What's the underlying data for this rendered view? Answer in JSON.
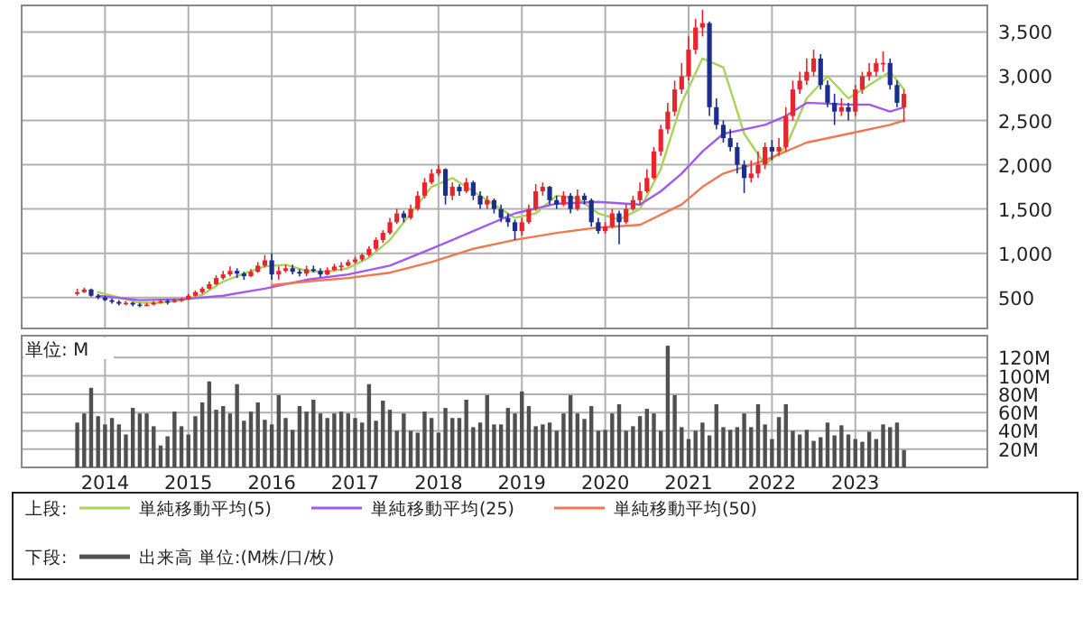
{
  "chart_data": [
    {
      "type": "candlestick",
      "legend_title": "上段:",
      "legend": "bottom",
      "grid": true,
      "tick_labels": "y",
      "xlim": [
        "2013-01",
        "2024-08"
      ],
      "xticks": [
        {
          "value": "2014-01",
          "label": null
        },
        {
          "value": "2015-01",
          "label": null
        },
        {
          "value": "2016-01",
          "label": null
        },
        {
          "value": "2017-01",
          "label": null
        },
        {
          "value": "2018-01",
          "label": null
        },
        {
          "value": "2019-01",
          "label": null
        },
        {
          "value": "2020-01",
          "label": null
        },
        {
          "value": "2021-01",
          "label": null
        },
        {
          "value": "2022-01",
          "label": null
        },
        {
          "value": "2023-01",
          "label": null
        }
      ],
      "ylim": [
        150,
        3800
      ],
      "yticks": [
        {
          "value": 500,
          "label": "500"
        },
        {
          "value": 1000,
          "label": "1,000"
        },
        {
          "value": 1500,
          "label": "1,500"
        },
        {
          "value": 2000,
          "label": "2,000"
        },
        {
          "value": 2500,
          "label": "2,500"
        },
        {
          "value": 3000,
          "label": "3,000"
        },
        {
          "value": 3500,
          "label": "3,500"
        }
      ],
      "x": [
        "2013-09",
        "2013-10",
        "2013-11",
        "2013-12",
        "2014-01",
        "2014-02",
        "2014-03",
        "2014-04",
        "2014-05",
        "2014-06",
        "2014-07",
        "2014-08",
        "2014-09",
        "2014-10",
        "2014-11",
        "2014-12",
        "2015-01",
        "2015-02",
        "2015-03",
        "2015-04",
        "2015-05",
        "2015-06",
        "2015-07",
        "2015-08",
        "2015-09",
        "2015-10",
        "2015-11",
        "2015-12",
        "2016-01",
        "2016-02",
        "2016-03",
        "2016-04",
        "2016-05",
        "2016-06",
        "2016-07",
        "2016-08",
        "2016-09",
        "2016-10",
        "2016-11",
        "2016-12",
        "2017-01",
        "2017-02",
        "2017-03",
        "2017-04",
        "2017-05",
        "2017-06",
        "2017-07",
        "2017-08",
        "2017-09",
        "2017-10",
        "2017-11",
        "2017-12",
        "2018-01",
        "2018-02",
        "2018-03",
        "2018-04",
        "2018-05",
        "2018-06",
        "2018-07",
        "2018-08",
        "2018-09",
        "2018-10",
        "2018-11",
        "2018-12",
        "2019-01",
        "2019-02",
        "2019-03",
        "2019-04",
        "2019-05",
        "2019-06",
        "2019-07",
        "2019-08",
        "2019-09",
        "2019-10",
        "2019-11",
        "2019-12",
        "2020-01",
        "2020-02",
        "2020-03",
        "2020-04",
        "2020-05",
        "2020-06",
        "2020-07",
        "2020-08",
        "2020-09",
        "2020-10",
        "2020-11",
        "2020-12",
        "2021-01",
        "2021-02",
        "2021-03",
        "2021-04",
        "2021-05",
        "2021-06",
        "2021-07",
        "2021-08",
        "2021-09",
        "2021-10",
        "2021-11",
        "2021-12",
        "2022-01",
        "2022-02",
        "2022-03",
        "2022-04",
        "2022-05",
        "2022-06",
        "2022-07",
        "2022-08",
        "2022-09",
        "2022-10",
        "2022-11",
        "2022-12",
        "2023-01",
        "2023-02",
        "2023-03",
        "2023-04",
        "2023-05",
        "2023-06",
        "2023-07",
        "2023-08"
      ],
      "ohlc": [
        [
          540,
          600,
          520,
          560
        ],
        [
          560,
          610,
          550,
          590
        ],
        [
          590,
          600,
          510,
          520
        ],
        [
          520,
          540,
          480,
          500
        ],
        [
          500,
          520,
          460,
          470
        ],
        [
          470,
          490,
          430,
          450
        ],
        [
          450,
          470,
          410,
          430
        ],
        [
          430,
          460,
          410,
          440
        ],
        [
          440,
          450,
          400,
          420
        ],
        [
          420,
          440,
          390,
          410
        ],
        [
          410,
          440,
          400,
          420
        ],
        [
          420,
          460,
          410,
          440
        ],
        [
          440,
          480,
          430,
          460
        ],
        [
          460,
          480,
          420,
          450
        ],
        [
          450,
          490,
          440,
          470
        ],
        [
          470,
          500,
          450,
          480
        ],
        [
          480,
          540,
          470,
          520
        ],
        [
          520,
          580,
          510,
          560
        ],
        [
          560,
          620,
          540,
          600
        ],
        [
          600,
          680,
          590,
          650
        ],
        [
          650,
          750,
          640,
          720
        ],
        [
          720,
          800,
          700,
          760
        ],
        [
          760,
          850,
          740,
          800
        ],
        [
          800,
          830,
          720,
          770
        ],
        [
          770,
          790,
          700,
          740
        ],
        [
          740,
          820,
          730,
          790
        ],
        [
          790,
          900,
          780,
          860
        ],
        [
          860,
          980,
          840,
          920
        ],
        [
          920,
          1000,
          700,
          760
        ],
        [
          760,
          850,
          700,
          800
        ],
        [
          800,
          870,
          780,
          830
        ],
        [
          830,
          870,
          760,
          790
        ],
        [
          790,
          820,
          740,
          770
        ],
        [
          770,
          860,
          740,
          820
        ],
        [
          820,
          860,
          780,
          800
        ],
        [
          800,
          830,
          730,
          760
        ],
        [
          760,
          840,
          750,
          810
        ],
        [
          810,
          880,
          800,
          850
        ],
        [
          850,
          900,
          800,
          860
        ],
        [
          860,
          930,
          850,
          900
        ],
        [
          900,
          960,
          880,
          930
        ],
        [
          930,
          1000,
          910,
          980
        ],
        [
          980,
          1080,
          960,
          1050
        ],
        [
          1050,
          1180,
          1030,
          1150
        ],
        [
          1150,
          1260,
          1120,
          1230
        ],
        [
          1230,
          1400,
          1210,
          1350
        ],
        [
          1350,
          1500,
          1330,
          1450
        ],
        [
          1450,
          1480,
          1350,
          1400
        ],
        [
          1400,
          1550,
          1380,
          1500
        ],
        [
          1500,
          1700,
          1480,
          1650
        ],
        [
          1650,
          1850,
          1620,
          1800
        ],
        [
          1800,
          1950,
          1780,
          1900
        ],
        [
          1900,
          2000,
          1870,
          1950
        ],
        [
          1950,
          1960,
          1550,
          1650
        ],
        [
          1650,
          1800,
          1600,
          1750
        ],
        [
          1750,
          1780,
          1650,
          1700
        ],
        [
          1700,
          1850,
          1680,
          1800
        ],
        [
          1800,
          1820,
          1600,
          1650
        ],
        [
          1650,
          1700,
          1500,
          1550
        ],
        [
          1550,
          1650,
          1500,
          1600
        ],
        [
          1600,
          1620,
          1450,
          1500
        ],
        [
          1500,
          1550,
          1350,
          1400
        ],
        [
          1400,
          1450,
          1300,
          1350
        ],
        [
          1350,
          1380,
          1150,
          1250
        ],
        [
          1250,
          1400,
          1200,
          1350
        ],
        [
          1350,
          1550,
          1330,
          1500
        ],
        [
          1500,
          1780,
          1480,
          1700
        ],
        [
          1700,
          1800,
          1650,
          1750
        ],
        [
          1750,
          1760,
          1550,
          1600
        ],
        [
          1600,
          1650,
          1500,
          1550
        ],
        [
          1550,
          1700,
          1530,
          1650
        ],
        [
          1650,
          1680,
          1450,
          1500
        ],
        [
          1500,
          1720,
          1480,
          1650
        ],
        [
          1650,
          1680,
          1550,
          1600
        ],
        [
          1600,
          1620,
          1300,
          1350
        ],
        [
          1350,
          1400,
          1220,
          1250
        ],
        [
          1250,
          1350,
          1220,
          1300
        ],
        [
          1300,
          1500,
          1280,
          1450
        ],
        [
          1450,
          1480,
          1100,
          1350
        ],
        [
          1350,
          1550,
          1330,
          1500
        ],
        [
          1500,
          1650,
          1480,
          1600
        ],
        [
          1600,
          1800,
          1550,
          1700
        ],
        [
          1700,
          1950,
          1680,
          1850
        ],
        [
          1850,
          2200,
          1830,
          2150
        ],
        [
          2150,
          2450,
          2100,
          2400
        ],
        [
          2400,
          2700,
          2350,
          2600
        ],
        [
          2600,
          2950,
          2550,
          2850
        ],
        [
          2850,
          3150,
          2800,
          3000
        ],
        [
          3000,
          3450,
          2950,
          3300
        ],
        [
          3300,
          3650,
          3250,
          3550
        ],
        [
          3550,
          3750,
          3450,
          3600
        ],
        [
          3600,
          3620,
          2550,
          2650
        ],
        [
          2650,
          2750,
          2400,
          2450
        ],
        [
          2450,
          2500,
          2250,
          2300
        ],
        [
          2300,
          2400,
          2150,
          2200
        ],
        [
          2200,
          2250,
          1900,
          2000
        ],
        [
          2000,
          2050,
          1680,
          1850
        ],
        [
          1850,
          2050,
          1800,
          1900
        ],
        [
          1900,
          2150,
          1850,
          2000
        ],
        [
          2000,
          2250,
          1950,
          2200
        ],
        [
          2200,
          2280,
          2050,
          2150
        ],
        [
          2150,
          2300,
          2100,
          2200
        ],
        [
          2200,
          2650,
          2150,
          2550
        ],
        [
          2550,
          2950,
          2500,
          2850
        ],
        [
          2850,
          3050,
          2800,
          2950
        ],
        [
          2950,
          3200,
          2900,
          3050
        ],
        [
          3050,
          3300,
          3000,
          3200
        ],
        [
          3200,
          3250,
          2850,
          2900
        ],
        [
          2900,
          2950,
          2650,
          2700
        ],
        [
          2700,
          2800,
          2450,
          2600
        ],
        [
          2600,
          2750,
          2550,
          2650
        ],
        [
          2650,
          2700,
          2500,
          2600
        ],
        [
          2600,
          2900,
          2550,
          2850
        ],
        [
          2850,
          3050,
          2800,
          3000
        ],
        [
          3000,
          3150,
          2950,
          3050
        ],
        [
          3050,
          3200,
          3000,
          3150
        ],
        [
          3150,
          3280,
          3050,
          3150
        ],
        [
          3150,
          3200,
          2850,
          2900
        ],
        [
          2900,
          2950,
          2650,
          2700
        ],
        [
          2650,
          2850,
          2480,
          2800
        ]
      ],
      "colors": [
        "#e8242c",
        "#e8242c",
        "#1b2d8f",
        "#1b2d8f",
        "#1b2d8f",
        "#1b2d8f",
        "#1b2d8f",
        "#e8242c",
        "#1b2d8f",
        "#1b2d8f",
        "#e8242c",
        "#e8242c",
        "#e8242c",
        "#1b2d8f",
        "#e8242c",
        "#e8242c",
        "#e8242c",
        "#e8242c",
        "#e8242c",
        "#e8242c",
        "#e8242c",
        "#e8242c",
        "#e8242c",
        "#1b2d8f",
        "#1b2d8f",
        "#e8242c",
        "#e8242c",
        "#e8242c",
        "#1b2d8f",
        "#e8242c",
        "#e8242c",
        "#1b2d8f",
        "#1b2d8f",
        "#e8242c",
        "#1b2d8f",
        "#1b2d8f",
        "#e8242c",
        "#e8242c",
        "#e8242c",
        "#e8242c",
        "#e8242c",
        "#e8242c",
        "#e8242c",
        "#e8242c",
        "#e8242c",
        "#e8242c",
        "#e8242c",
        "#1b2d8f",
        "#e8242c",
        "#e8242c",
        "#e8242c",
        "#e8242c",
        "#e8242c",
        "#1b2d8f",
        "#e8242c",
        "#1b2d8f",
        "#e8242c",
        "#1b2d8f",
        "#1b2d8f",
        "#e8242c",
        "#1b2d8f",
        "#1b2d8f",
        "#1b2d8f",
        "#1b2d8f",
        "#e8242c",
        "#e8242c",
        "#e8242c",
        "#e8242c",
        "#1b2d8f",
        "#1b2d8f",
        "#e8242c",
        "#1b2d8f",
        "#e8242c",
        "#1b2d8f",
        "#1b2d8f",
        "#1b2d8f",
        "#e8242c",
        "#e8242c",
        "#1b2d8f",
        "#e8242c",
        "#e8242c",
        "#e8242c",
        "#e8242c",
        "#e8242c",
        "#e8242c",
        "#e8242c",
        "#e8242c",
        "#e8242c",
        "#e8242c",
        "#e8242c",
        "#e8242c",
        "#1b2d8f",
        "#1b2d8f",
        "#1b2d8f",
        "#1b2d8f",
        "#1b2d8f",
        "#1b2d8f",
        "#e8242c",
        "#e8242c",
        "#e8242c",
        "#1b2d8f",
        "#e8242c",
        "#e8242c",
        "#e8242c",
        "#e8242c",
        "#e8242c",
        "#e8242c",
        "#1b2d8f",
        "#1b2d8f",
        "#1b2d8f",
        "#e8242c",
        "#1b2d8f",
        "#e8242c",
        "#e8242c",
        "#e8242c",
        "#e8242c",
        "#e8242c",
        "#1b2d8f",
        "#1b2d8f",
        "#e8242c"
      ],
      "series": [
        {
          "type": "line",
          "name": "単純移動平均(5)",
          "color": "#a8d45a",
          "x": [
            "2013-12",
            "2014-03",
            "2014-06",
            "2014-09",
            "2014-12",
            "2015-03",
            "2015-06",
            "2015-09",
            "2015-12",
            "2016-03",
            "2016-06",
            "2016-09",
            "2016-12",
            "2017-03",
            "2017-06",
            "2017-09",
            "2017-12",
            "2018-03",
            "2018-06",
            "2018-09",
            "2018-12",
            "2019-03",
            "2019-06",
            "2019-09",
            "2019-12",
            "2020-03",
            "2020-06",
            "2020-09",
            "2020-12",
            "2021-03",
            "2021-06",
            "2021-09",
            "2021-12",
            "2022-03",
            "2022-06",
            "2022-09",
            "2022-12",
            "2023-03",
            "2023-06",
            "2023-08"
          ],
          "values": [
            560,
            500,
            440,
            440,
            465,
            530,
            680,
            770,
            850,
            870,
            800,
            790,
            830,
            950,
            1150,
            1450,
            1750,
            1850,
            1700,
            1550,
            1400,
            1450,
            1650,
            1620,
            1450,
            1380,
            1500,
            1950,
            2700,
            3200,
            3100,
            2350,
            2000,
            2200,
            2750,
            3000,
            2750,
            2900,
            3050,
            2850
          ]
        },
        {
          "type": "line",
          "name": "単純移動平均(25)",
          "color": "#a05af0",
          "x": [
            "2013-12",
            "2014-06",
            "2014-12",
            "2015-06",
            "2015-12",
            "2016-06",
            "2016-12",
            "2017-06",
            "2017-12",
            "2018-06",
            "2018-12",
            "2019-06",
            "2019-12",
            "2020-06",
            "2020-09",
            "2020-12",
            "2021-03",
            "2021-06",
            "2021-09",
            "2021-12",
            "2022-03",
            "2022-06",
            "2022-12",
            "2023-03",
            "2023-06",
            "2023-08"
          ],
          "values": [
            520,
            470,
            480,
            520,
            600,
            700,
            760,
            860,
            1050,
            1250,
            1450,
            1560,
            1580,
            1550,
            1700,
            1900,
            2150,
            2350,
            2400,
            2450,
            2550,
            2700,
            2680,
            2680,
            2600,
            2650
          ]
        },
        {
          "type": "line",
          "name": "単純移動平均(50)",
          "color": "#f07850",
          "x": [
            "2016-01",
            "2016-06",
            "2016-12",
            "2017-06",
            "2017-12",
            "2018-06",
            "2018-12",
            "2019-06",
            "2019-12",
            "2020-06",
            "2020-12",
            "2021-03",
            "2021-06",
            "2021-12",
            "2022-06",
            "2022-12",
            "2023-06",
            "2023-08"
          ],
          "values": [
            640,
            680,
            720,
            780,
            900,
            1050,
            1150,
            1230,
            1290,
            1320,
            1550,
            1750,
            1900,
            2050,
            2250,
            2350,
            2450,
            2500
          ]
        }
      ]
    },
    {
      "type": "bar",
      "ylabel": "単位: M",
      "legend_title": "下段:",
      "legend": "bottom",
      "grid": true,
      "xlim": [
        "2013-01",
        "2024-08"
      ],
      "xticks": [
        {
          "value": "2014-01",
          "label": "2014"
        },
        {
          "value": "2015-01",
          "label": "2015"
        },
        {
          "value": "2016-01",
          "label": "2016"
        },
        {
          "value": "2017-01",
          "label": "2017"
        },
        {
          "value": "2018-01",
          "label": "2018"
        },
        {
          "value": "2019-01",
          "label": "2019"
        },
        {
          "value": "2020-01",
          "label": "2020"
        },
        {
          "value": "2021-01",
          "label": "2021"
        },
        {
          "value": "2022-01",
          "label": "2022"
        },
        {
          "value": "2023-01",
          "label": "2023"
        }
      ],
      "ylim": [
        0,
        144
      ],
      "yticks": [
        {
          "value": 20,
          "label": "20M"
        },
        {
          "value": 40,
          "label": "40M"
        },
        {
          "value": 60,
          "label": "60M"
        },
        {
          "value": 80,
          "label": "80M"
        },
        {
          "value": 100,
          "label": "100M"
        },
        {
          "value": 120,
          "label": "120M"
        }
      ],
      "x": [
        "2013-09",
        "2013-10",
        "2013-11",
        "2013-12",
        "2014-01",
        "2014-02",
        "2014-03",
        "2014-04",
        "2014-05",
        "2014-06",
        "2014-07",
        "2014-08",
        "2014-09",
        "2014-10",
        "2014-11",
        "2014-12",
        "2015-01",
        "2015-02",
        "2015-03",
        "2015-04",
        "2015-05",
        "2015-06",
        "2015-07",
        "2015-08",
        "2015-09",
        "2015-10",
        "2015-11",
        "2015-12",
        "2016-01",
        "2016-02",
        "2016-03",
        "2016-04",
        "2016-05",
        "2016-06",
        "2016-07",
        "2016-08",
        "2016-09",
        "2016-10",
        "2016-11",
        "2016-12",
        "2017-01",
        "2017-02",
        "2017-03",
        "2017-04",
        "2017-05",
        "2017-06",
        "2017-07",
        "2017-08",
        "2017-09",
        "2017-10",
        "2017-11",
        "2017-12",
        "2018-01",
        "2018-02",
        "2018-03",
        "2018-04",
        "2018-05",
        "2018-06",
        "2018-07",
        "2018-08",
        "2018-09",
        "2018-10",
        "2018-11",
        "2018-12",
        "2019-01",
        "2019-02",
        "2019-03",
        "2019-04",
        "2019-05",
        "2019-06",
        "2019-07",
        "2019-08",
        "2019-09",
        "2019-10",
        "2019-11",
        "2019-12",
        "2020-01",
        "2020-02",
        "2020-03",
        "2020-04",
        "2020-05",
        "2020-06",
        "2020-07",
        "2020-08",
        "2020-09",
        "2020-10",
        "2020-11",
        "2020-12",
        "2021-01",
        "2021-02",
        "2021-03",
        "2021-04",
        "2021-05",
        "2021-06",
        "2021-07",
        "2021-08",
        "2021-09",
        "2021-10",
        "2021-11",
        "2021-12",
        "2022-01",
        "2022-02",
        "2022-03",
        "2022-04",
        "2022-05",
        "2022-06",
        "2022-07",
        "2022-08",
        "2022-09",
        "2022-10",
        "2022-11",
        "2022-12",
        "2023-01",
        "2023-02",
        "2023-03",
        "2023-04",
        "2023-05",
        "2023-06",
        "2023-07",
        "2023-08"
      ],
      "series": [
        {
          "name": "出来高 単位:(M株/口/枚)",
          "color": "#505050",
          "values": [
            49,
            59,
            87,
            56,
            47,
            54,
            47,
            36,
            65,
            59,
            59,
            45,
            24,
            34,
            61,
            45,
            36,
            56,
            71,
            94,
            63,
            67,
            59,
            91,
            51,
            61,
            71,
            52,
            47,
            79,
            54,
            41,
            67,
            61,
            74,
            59,
            54,
            59,
            61,
            59,
            54,
            49,
            91,
            51,
            73,
            63,
            40,
            59,
            40,
            38,
            61,
            54,
            38,
            65,
            54,
            54,
            74,
            44,
            49,
            79,
            47,
            47,
            65,
            59,
            83,
            67,
            45,
            47,
            49,
            40,
            59,
            79,
            59,
            53,
            67,
            40,
            41,
            59,
            69,
            40,
            45,
            56,
            64,
            59,
            40,
            133,
            79,
            44,
            31,
            40,
            49,
            35,
            69,
            44,
            41,
            44,
            59,
            44,
            69,
            47,
            31,
            55,
            69,
            40,
            36,
            41,
            29,
            33,
            49,
            35,
            46,
            36,
            31,
            28,
            39,
            31,
            47,
            44,
            49,
            19
          ]
        }
      ]
    }
  ]
}
